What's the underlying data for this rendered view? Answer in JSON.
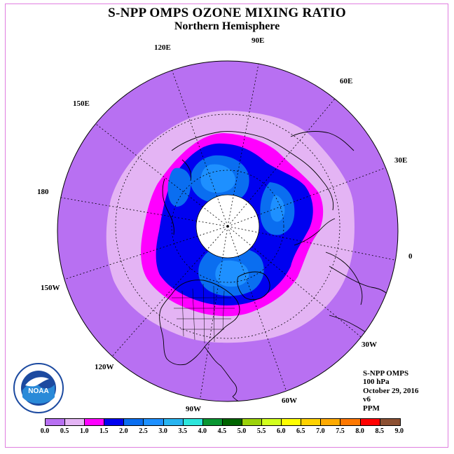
{
  "title": "S-NPP OMPS OZONE MIXING RATIO",
  "subtitle": "Northern Hemisphere",
  "longitude_labels": [
    "90E",
    "60E",
    "30E",
    "0",
    "30W",
    "60W",
    "90W",
    "120W",
    "150W",
    "180",
    "150E",
    "120E"
  ],
  "info": {
    "instrument": "S-NPP OMPS",
    "level": "100 hPa",
    "date": "October 29, 2016",
    "version": "v6",
    "units": "PPM"
  },
  "logo_text": "NOAA",
  "colorbar": {
    "ticks": [
      "0.0",
      "0.5",
      "1.0",
      "1.5",
      "2.0",
      "2.5",
      "3.0",
      "3.5",
      "4.0",
      "4.5",
      "5.0",
      "5.5",
      "6.0",
      "6.5",
      "7.0",
      "7.5",
      "8.0",
      "8.5",
      "9.0"
    ],
    "colors": [
      "#b870f2",
      "#e4b4f4",
      "#ff00ff",
      "#0000f0",
      "#0a6ef0",
      "#1e90ff",
      "#28b4f0",
      "#2de6dc",
      "#0a9632",
      "#006400",
      "#9bd20a",
      "#d2ff1e",
      "#ffff00",
      "#ffd200",
      "#ffaa00",
      "#ff7800",
      "#ff0000",
      "#8c5032"
    ]
  }
}
